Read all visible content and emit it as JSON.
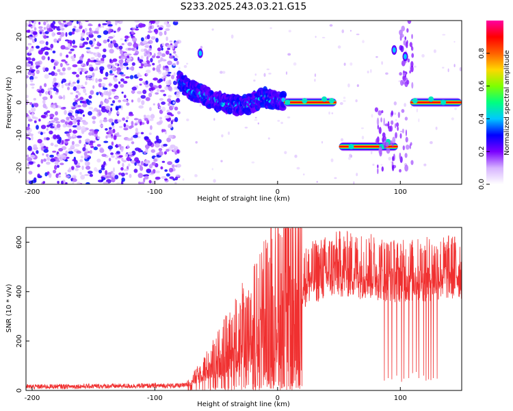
{
  "title": "S233.2025.243.03.21.G15",
  "chart_data": [
    {
      "type": "heatmap",
      "name": "spectrogram",
      "xlabel": "Height of straight line (km)",
      "ylabel": "Frequency (Hz)",
      "xlim": [
        -205,
        150
      ],
      "ylim": [
        -25,
        25
      ],
      "xticks": [
        -200,
        -100,
        0,
        100
      ],
      "yticks": [
        -20,
        -10,
        0,
        10,
        20
      ],
      "colorbar": {
        "label": "Normalized spectral amplitude",
        "range": [
          0,
          1
        ],
        "ticks": [
          "0.0",
          "0.2",
          "0.4",
          "0.6",
          "0.8"
        ],
        "colors": [
          "#ffffff",
          "#d6b3ff",
          "#7a00ff",
          "#0000ff",
          "#00c8ff",
          "#00ff7f",
          "#7fff00",
          "#ffd700",
          "#ff6000",
          "#ff0000",
          "#ff00a0"
        ]
      },
      "features": {
        "noise_region_x": [
          -205,
          -80
        ],
        "sweep_points": [
          [
            -80,
            6.5
          ],
          [
            -70,
            3.5
          ],
          [
            -60,
            2
          ],
          [
            -50,
            0.5
          ],
          [
            -40,
            -0.5
          ],
          [
            -30,
            -1
          ],
          [
            -20,
            0
          ],
          [
            -10,
            1.5
          ],
          [
            0,
            0.5
          ],
          [
            50,
            0.5
          ]
        ],
        "strong_tone_1": {
          "x": [
            5,
            48
          ],
          "freq": 0
        },
        "strong_tone_2": {
          "x": [
            50,
            98
          ],
          "freq": -13.5
        },
        "strong_tone_3": {
          "x": [
            108,
            150
          ],
          "freq": 0
        },
        "spot_tones": [
          [
            -63,
            15
          ],
          [
            95,
            16
          ],
          [
            104,
            14
          ]
        ]
      }
    },
    {
      "type": "line",
      "name": "snr",
      "xlabel": "Height of straight line (km)",
      "ylabel": "SNR (10 * v/v)",
      "xlim": [
        -205,
        150
      ],
      "ylim": [
        0,
        660
      ],
      "xticks": [
        -200,
        -100,
        0,
        100
      ],
      "yticks": [
        0,
        200,
        400,
        600
      ],
      "series": [
        {
          "name": "SNR",
          "color": "#f03030",
          "envelope_x": [
            -205,
            -75,
            -65,
            -50,
            -30,
            -10,
            0,
            15,
            30,
            50,
            75,
            100,
            125,
            150
          ],
          "envelope_y": [
            15,
            20,
            60,
            130,
            220,
            300,
            370,
            430,
            470,
            500,
            490,
            470,
            480,
            490
          ]
        }
      ],
      "dropouts": [
        {
          "x": 14,
          "y": 40
        },
        {
          "x": 87,
          "y": 40
        },
        {
          "x": 90,
          "y": 50
        },
        {
          "x": 93,
          "y": 45
        },
        {
          "x": 97,
          "y": 60
        },
        {
          "x": 101,
          "y": 35
        },
        {
          "x": 103,
          "y": 48
        },
        {
          "x": 107,
          "y": 50
        },
        {
          "x": 110,
          "y": 70
        },
        {
          "x": 113,
          "y": 75
        },
        {
          "x": 115,
          "y": 50
        },
        {
          "x": 119,
          "y": 60
        },
        {
          "x": 121,
          "y": 40
        },
        {
          "x": 123,
          "y": 45
        },
        {
          "x": 125,
          "y": 42
        },
        {
          "x": 127,
          "y": 50
        },
        {
          "x": 130,
          "y": 48
        }
      ]
    }
  ]
}
